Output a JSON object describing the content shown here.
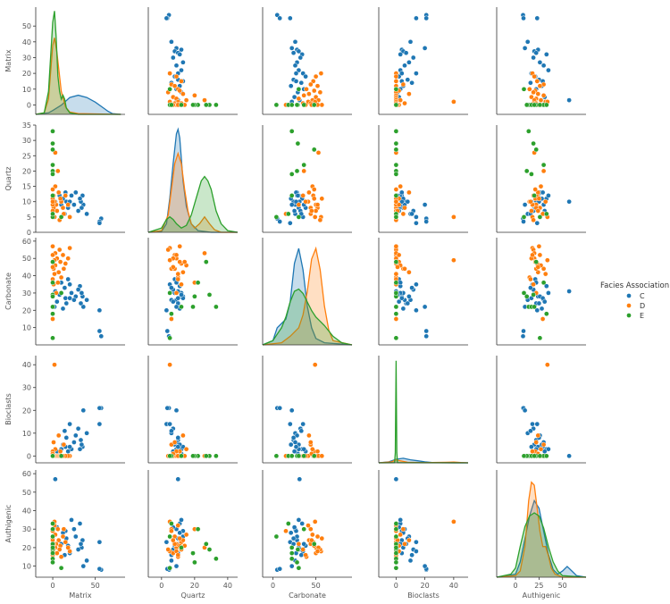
{
  "chart_data": {
    "type": "scatter",
    "subtype": "pairplot",
    "variables": [
      "Matrix",
      "Quartz",
      "Carbonate",
      "Bioclasts",
      "Authigenic"
    ],
    "diag_kind": "kde",
    "legend": {
      "title": "Facies Association",
      "placement": "right",
      "entries": [
        {
          "name": "C",
          "color": "#1f77b4"
        },
        {
          "name": "D",
          "color": "#ff7f0e"
        },
        {
          "name": "E",
          "color": "#2ca02c"
        }
      ]
    },
    "axes": {
      "Matrix": {
        "ylim": [
          -6,
          62
        ],
        "yticks": [
          0,
          10,
          20,
          30,
          40,
          50
        ],
        "xlim": [
          -20,
          85
        ],
        "xticks": [
          0,
          50
        ]
      },
      "Quartz": {
        "ylim": [
          0,
          35
        ],
        "yticks": [
          0,
          5,
          10,
          15,
          20,
          25,
          30,
          35
        ],
        "xlim": [
          -8,
          46
        ],
        "xticks": [
          0,
          20,
          40
        ]
      },
      "Carbonate": {
        "ylim": [
          0,
          62
        ],
        "yticks": [
          10,
          20,
          30,
          40,
          50,
          60
        ],
        "xlim": [
          -12,
          92
        ],
        "xticks": [
          0,
          50
        ]
      },
      "Bioclasts": {
        "ylim": [
          -3,
          44
        ],
        "yticks": [
          0,
          10,
          20,
          30,
          40
        ],
        "xlim": [
          -12,
          50
        ],
        "xticks": [
          0,
          20,
          40
        ]
      },
      "Authigenic": {
        "ylim": [
          4,
          62
        ],
        "yticks": [
          10,
          20,
          30,
          40,
          50,
          60
        ],
        "xlim": [
          -20,
          75
        ],
        "xticks": [
          0,
          25,
          50
        ]
      }
    },
    "points": {
      "C": [
        {
          "Matrix": 57,
          "Quartz": 4.5,
          "Carbonate": 5,
          "Bioclasts": 21,
          "Authigenic": 8
        },
        {
          "Matrix": 55,
          "Quartz": 3.5,
          "Carbonate": 8,
          "Bioclasts": 21,
          "Authigenic": 8.5
        },
        {
          "Matrix": 55,
          "Quartz": 3,
          "Carbonate": 20,
          "Bioclasts": 14,
          "Authigenic": 23
        },
        {
          "Matrix": 40,
          "Quartz": 6,
          "Carbonate": 26,
          "Bioclasts": 10,
          "Authigenic": 13
        },
        {
          "Matrix": 36,
          "Quartz": 9,
          "Carbonate": 22,
          "Bioclasts": 20,
          "Authigenic": 10
        },
        {
          "Matrix": 35,
          "Quartz": 12,
          "Carbonate": 28,
          "Bioclasts": 4,
          "Authigenic": 24
        },
        {
          "Matrix": 34,
          "Quartz": 8,
          "Carbonate": 30,
          "Bioclasts": 5,
          "Authigenic": 20
        },
        {
          "Matrix": 33,
          "Quartz": 10,
          "Carbonate": 24,
          "Bioclasts": 7,
          "Authigenic": 22
        },
        {
          "Matrix": 32,
          "Quartz": 11,
          "Carbonate": 34,
          "Bioclasts": 3,
          "Authigenic": 33
        },
        {
          "Matrix": 30,
          "Quartz": 7,
          "Carbonate": 32,
          "Bioclasts": 12,
          "Authigenic": 19
        },
        {
          "Matrix": 27,
          "Quartz": 13,
          "Carbonate": 28,
          "Bioclasts": 9,
          "Authigenic": 26
        },
        {
          "Matrix": 25,
          "Quartz": 9,
          "Carbonate": 26,
          "Bioclasts": 6,
          "Authigenic": 30
        },
        {
          "Matrix": 22,
          "Quartz": 12,
          "Carbonate": 30,
          "Bioclasts": 3,
          "Authigenic": 35
        },
        {
          "Matrix": 20,
          "Quartz": 5,
          "Carbonate": 35,
          "Bioclasts": 14,
          "Authigenic": 18
        },
        {
          "Matrix": 18,
          "Quartz": 8,
          "Carbonate": 38,
          "Bioclasts": 2,
          "Authigenic": 21
        },
        {
          "Matrix": 16,
          "Quartz": 10,
          "Carbonate": 24,
          "Bioclasts": 8,
          "Authigenic": 25
        },
        {
          "Matrix": 15,
          "Quartz": 13,
          "Carbonate": 27,
          "Bioclasts": 4,
          "Authigenic": 29
        },
        {
          "Matrix": 14,
          "Quartz": 6,
          "Carbonate": 33,
          "Bioclasts": 11,
          "Authigenic": 16
        },
        {
          "Matrix": 12,
          "Quartz": 11,
          "Carbonate": 21,
          "Bioclasts": 5,
          "Authigenic": 28
        },
        {
          "Matrix": 10,
          "Quartz": 9,
          "Carbonate": 36,
          "Bioclasts": 3,
          "Authigenic": 22
        },
        {
          "Matrix": 8,
          "Quartz": 12,
          "Carbonate": 29,
          "Bioclasts": 1,
          "Authigenic": 19
        },
        {
          "Matrix": 5,
          "Quartz": 7,
          "Carbonate": 25,
          "Bioclasts": 2,
          "Authigenic": 31
        },
        {
          "Matrix": 3,
          "Quartz": 10,
          "Carbonate": 31,
          "Bioclasts": 0,
          "Authigenic": 57
        },
        {
          "Matrix": 2,
          "Quartz": 9,
          "Carbonate": 22,
          "Bioclasts": 0,
          "Authigenic": 20
        },
        {
          "Matrix": 20,
          "Quartz": 10,
          "Carbonate": 27,
          "Bioclasts": 4,
          "Authigenic": 17
        }
      ],
      "D": [
        {
          "Matrix": 20,
          "Quartz": 5,
          "Carbonate": 56,
          "Bioclasts": 0,
          "Authigenic": 18
        },
        {
          "Matrix": 18,
          "Quartz": 9,
          "Carbonate": 50,
          "Bioclasts": 0,
          "Authigenic": 20
        },
        {
          "Matrix": 15,
          "Quartz": 12,
          "Carbonate": 47,
          "Bioclasts": 0,
          "Authigenic": 23
        },
        {
          "Matrix": 13,
          "Quartz": 6,
          "Carbonate": 44,
          "Bioclasts": 5,
          "Authigenic": 30
        },
        {
          "Matrix": 12,
          "Quartz": 8,
          "Carbonate": 52,
          "Bioclasts": 0,
          "Authigenic": 26
        },
        {
          "Matrix": 10,
          "Quartz": 10,
          "Carbonate": 39,
          "Bioclasts": 0,
          "Authigenic": 15
        },
        {
          "Matrix": 9,
          "Quartz": 11,
          "Carbonate": 48,
          "Bioclasts": 2,
          "Authigenic": 21
        },
        {
          "Matrix": 8,
          "Quartz": 4,
          "Carbonate": 55,
          "Bioclasts": 0,
          "Authigenic": 19
        },
        {
          "Matrix": 7,
          "Quartz": 13,
          "Carbonate": 42,
          "Bioclasts": 9,
          "Authigenic": 24
        },
        {
          "Matrix": 6,
          "Quartz": 20,
          "Carbonate": 36,
          "Bioclasts": 0,
          "Authigenic": 30
        },
        {
          "Matrix": 5,
          "Quartz": 7,
          "Carbonate": 50,
          "Bioclasts": 0,
          "Authigenic": 17
        },
        {
          "Matrix": 4,
          "Quartz": 9,
          "Carbonate": 30,
          "Bioclasts": 0,
          "Authigenic": 22
        },
        {
          "Matrix": 3,
          "Quartz": 15,
          "Carbonate": 46,
          "Bioclasts": 3,
          "Authigenic": 27
        },
        {
          "Matrix": 3,
          "Quartz": 26,
          "Carbonate": 53,
          "Bioclasts": 0,
          "Authigenic": 20
        },
        {
          "Matrix": 2,
          "Quartz": 10,
          "Carbonate": 41,
          "Bioclasts": 0,
          "Authigenic": 32
        },
        {
          "Matrix": 2,
          "Quartz": 5,
          "Carbonate": 49,
          "Bioclasts": 40,
          "Authigenic": 34
        },
        {
          "Matrix": 1,
          "Quartz": 12,
          "Carbonate": 35,
          "Bioclasts": 0,
          "Authigenic": 19
        },
        {
          "Matrix": 1,
          "Quartz": 8,
          "Carbonate": 44,
          "Bioclasts": 6,
          "Authigenic": 22
        },
        {
          "Matrix": 0,
          "Quartz": 11,
          "Carbonate": 57,
          "Bioclasts": 0,
          "Authigenic": 25
        },
        {
          "Matrix": 0,
          "Quartz": 6,
          "Carbonate": 15,
          "Bioclasts": 0,
          "Authigenic": 29
        },
        {
          "Matrix": 0,
          "Quartz": 9,
          "Carbonate": 52,
          "Bioclasts": 2,
          "Authigenic": 18
        },
        {
          "Matrix": 0,
          "Quartz": 14,
          "Carbonate": 48,
          "Bioclasts": 0,
          "Authigenic": 21
        },
        {
          "Matrix": 0,
          "Quartz": 10,
          "Carbonate": 38,
          "Bioclasts": 0,
          "Authigenic": 16
        },
        {
          "Matrix": 0,
          "Quartz": 7,
          "Carbonate": 45,
          "Bioclasts": 1,
          "Authigenic": 24
        }
      ],
      "E": [
        {
          "Matrix": 0,
          "Quartz": 33,
          "Carbonate": 22,
          "Bioclasts": 0,
          "Authigenic": 14
        },
        {
          "Matrix": 0,
          "Quartz": 29,
          "Carbonate": 29,
          "Bioclasts": 0,
          "Authigenic": 19
        },
        {
          "Matrix": 0,
          "Quartz": 27,
          "Carbonate": 48,
          "Bioclasts": 0,
          "Authigenic": 22
        },
        {
          "Matrix": 0,
          "Quartz": 22,
          "Carbonate": 36,
          "Bioclasts": 0,
          "Authigenic": 30
        },
        {
          "Matrix": 0,
          "Quartz": 20,
          "Carbonate": 28,
          "Bioclasts": 0,
          "Authigenic": 12
        },
        {
          "Matrix": 0,
          "Quartz": 19,
          "Carbonate": 22,
          "Bioclasts": 0,
          "Authigenic": 17
        },
        {
          "Matrix": 0,
          "Quartz": 5,
          "Carbonate": 4,
          "Bioclasts": 0,
          "Authigenic": 26
        },
        {
          "Matrix": 0,
          "Quartz": 6,
          "Carbonate": 18,
          "Bioclasts": 0,
          "Authigenic": 33
        },
        {
          "Matrix": 10,
          "Quartz": 5,
          "Carbonate": 30,
          "Bioclasts": 0,
          "Authigenic": 9
        },
        {
          "Matrix": 0,
          "Quartz": 12,
          "Carbonate": 22,
          "Bioclasts": 0,
          "Authigenic": 20
        }
      ]
    },
    "diagonal": {
      "Matrix": {
        "ylim": [
          0,
          0.14
        ],
        "C": {
          "x": [
            -20,
            -5,
            0,
            10,
            20,
            30,
            40,
            50,
            60,
            65,
            70,
            80
          ],
          "y": [
            0,
            0.002,
            0.005,
            0.012,
            0.022,
            0.025,
            0.022,
            0.016,
            0.008,
            0.004,
            0.001,
            0
          ]
        },
        "D": {
          "x": [
            -20,
            -10,
            -5,
            0,
            2,
            5,
            10,
            15,
            20,
            30,
            80
          ],
          "y": [
            0,
            0.002,
            0.02,
            0.09,
            0.1,
            0.08,
            0.03,
            0.01,
            0.003,
            0.001,
            0
          ]
        },
        "E": {
          "x": [
            -20,
            -10,
            -5,
            0,
            2,
            4,
            6,
            8,
            10,
            12,
            14,
            16,
            20,
            30,
            80
          ],
          "y": [
            0,
            0.002,
            0.03,
            0.12,
            0.135,
            0.1,
            0.05,
            0.03,
            0.02,
            0.025,
            0.02,
            0.008,
            0.002,
            0,
            0
          ]
        }
      },
      "Quartz": {
        "ylim": [
          0,
          0.125
        ],
        "C": {
          "x": [
            -8,
            0,
            3,
            5,
            7,
            9,
            10,
            11,
            13,
            15,
            18,
            22,
            30,
            46
          ],
          "y": [
            0,
            0.001,
            0.01,
            0.04,
            0.08,
            0.115,
            0.12,
            0.11,
            0.06,
            0.03,
            0.01,
            0.002,
            0,
            0
          ]
        },
        "D": {
          "x": [
            -8,
            0,
            4,
            6,
            8,
            10,
            12,
            14,
            16,
            18,
            20,
            23,
            26,
            29,
            32,
            36,
            46
          ],
          "y": [
            0,
            0.002,
            0.02,
            0.05,
            0.08,
            0.092,
            0.08,
            0.05,
            0.025,
            0.01,
            0.005,
            0.01,
            0.018,
            0.01,
            0.003,
            0,
            0
          ]
        },
        "E": {
          "x": [
            -8,
            0,
            3,
            5,
            7,
            9,
            12,
            15,
            18,
            21,
            24,
            26,
            28,
            30,
            33,
            36,
            40,
            46
          ],
          "y": [
            0,
            0.005,
            0.015,
            0.018,
            0.015,
            0.01,
            0.005,
            0.008,
            0.02,
            0.04,
            0.06,
            0.065,
            0.06,
            0.05,
            0.025,
            0.01,
            0.002,
            0
          ]
        }
      },
      "Carbonate": {
        "ylim": [
          0,
          0.05
        ],
        "C": {
          "x": [
            -12,
            0,
            5,
            10,
            15,
            20,
            25,
            30,
            35,
            40,
            45,
            50,
            60,
            92
          ],
          "y": [
            0,
            0.002,
            0.008,
            0.01,
            0.012,
            0.02,
            0.038,
            0.045,
            0.035,
            0.018,
            0.008,
            0.003,
            0.001,
            0
          ]
        },
        "D": {
          "x": [
            -12,
            10,
            20,
            30,
            35,
            40,
            45,
            50,
            55,
            60,
            65,
            70,
            92
          ],
          "y": [
            0,
            0.001,
            0.004,
            0.008,
            0.014,
            0.025,
            0.04,
            0.045,
            0.035,
            0.018,
            0.007,
            0.002,
            0
          ]
        },
        "E": {
          "x": [
            -12,
            0,
            5,
            10,
            15,
            20,
            25,
            30,
            35,
            40,
            45,
            50,
            55,
            60,
            70,
            80,
            92
          ],
          "y": [
            0,
            0.002,
            0.005,
            0.008,
            0.013,
            0.02,
            0.025,
            0.026,
            0.024,
            0.02,
            0.016,
            0.013,
            0.011,
            0.009,
            0.004,
            0.001,
            0
          ]
        }
      },
      "Bioclasts": {
        "ylim": [
          0,
          1.05
        ],
        "C": {
          "x": [
            -12,
            -5,
            0,
            5,
            10,
            15,
            20,
            25,
            30,
            50
          ],
          "y": [
            0,
            0.01,
            0.035,
            0.045,
            0.03,
            0.02,
            0.01,
            0.003,
            0.001,
            0
          ]
        },
        "D": {
          "x": [
            -12,
            -3,
            0,
            3,
            8,
            20,
            35,
            40,
            45,
            50
          ],
          "y": [
            0,
            0.01,
            0.03,
            0.02,
            0.005,
            0.002,
            0.005,
            0.008,
            0.003,
            0
          ]
        },
        "E": {
          "x": [
            -12,
            -1,
            -0.5,
            0,
            0.5,
            1,
            50
          ],
          "y": [
            0,
            0.002,
            0.1,
            1.0,
            0.1,
            0.002,
            0
          ]
        }
      },
      "Authigenic": {
        "ylim": [
          0,
          0.07
        ],
        "C": {
          "x": [
            -20,
            0,
            5,
            10,
            15,
            20,
            25,
            30,
            35,
            40,
            45,
            50,
            55,
            60,
            65,
            75
          ],
          "y": [
            0,
            0.002,
            0.01,
            0.025,
            0.04,
            0.05,
            0.045,
            0.03,
            0.015,
            0.005,
            0.002,
            0.004,
            0.007,
            0.004,
            0.001,
            0
          ]
        },
        "D": {
          "x": [
            -20,
            0,
            5,
            10,
            14,
            17,
            20,
            23,
            26,
            29,
            32,
            35,
            38,
            42,
            50,
            75
          ],
          "y": [
            0,
            0.001,
            0.004,
            0.02,
            0.05,
            0.062,
            0.06,
            0.045,
            0.03,
            0.02,
            0.02,
            0.014,
            0.006,
            0.002,
            0,
            0
          ]
        },
        "E": {
          "x": [
            -20,
            -5,
            0,
            5,
            10,
            15,
            20,
            25,
            30,
            35,
            40,
            45,
            50,
            75
          ],
          "y": [
            0,
            0.002,
            0.006,
            0.02,
            0.033,
            0.04,
            0.042,
            0.04,
            0.032,
            0.02,
            0.01,
            0.004,
            0.001,
            0
          ]
        }
      }
    }
  }
}
